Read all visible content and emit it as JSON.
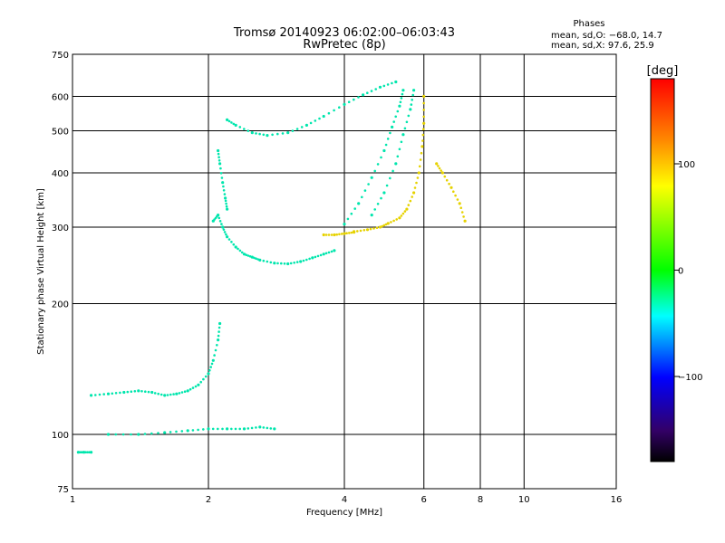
{
  "header": {
    "title_line1": "Tromsø 20140923 06:02:00–06:03:43",
    "title_line2": "RwPretec (8p)"
  },
  "stats": {
    "heading": "Phases",
    "line_o": "mean, sd,O: −68.0, 14.7",
    "line_x": "mean, sd,X:  97.6, 25.9"
  },
  "colorbar": {
    "label": "[deg]",
    "ticks": [
      100,
      0,
      -100
    ],
    "range": [
      -180,
      180
    ]
  },
  "chart_data": {
    "type": "scatter",
    "title": "Tromsø 20140923 06:02:00–06:03:43",
    "subtitle": "RwPretec (8p)",
    "xlabel": "Frequency [MHz]",
    "ylabel": "Stationary phase Virtual Height [km]",
    "x_scale": "log",
    "y_scale": "log",
    "xlim": [
      1,
      16
    ],
    "ylim": [
      75,
      750
    ],
    "x_ticks": [
      1,
      2,
      4,
      6,
      8,
      10,
      16
    ],
    "y_ticks": [
      75,
      100,
      200,
      300,
      400,
      500,
      600,
      750
    ],
    "x_gridlines": [
      2,
      4,
      6,
      8,
      10
    ],
    "y_gridlines": [
      100,
      200,
      300,
      400,
      500,
      600
    ],
    "series": [
      {
        "mode": "O",
        "phase_deg": -68,
        "segments": [
          {
            "points": [
              [
                1.03,
                91
              ],
              [
                1.06,
                91
              ],
              [
                1.1,
                91
              ]
            ]
          },
          {
            "points": [
              [
                1.1,
                123
              ],
              [
                1.2,
                124
              ],
              [
                1.3,
                125
              ],
              [
                1.4,
                126
              ],
              [
                1.5,
                125
              ],
              [
                1.6,
                123
              ],
              [
                1.7,
                124
              ],
              [
                1.8,
                126
              ],
              [
                1.9,
                130
              ],
              [
                2.0,
                138
              ],
              [
                2.05,
                148
              ],
              [
                2.1,
                165
              ],
              [
                2.12,
                180
              ]
            ]
          },
          {
            "points": [
              [
                1.2,
                100
              ],
              [
                1.4,
                100
              ],
              [
                1.6,
                101
              ],
              [
                1.8,
                102
              ],
              [
                2.0,
                103
              ],
              [
                2.2,
                103
              ],
              [
                2.4,
                103
              ],
              [
                2.6,
                104
              ],
              [
                2.8,
                103
              ]
            ]
          },
          {
            "points": [
              [
                2.05,
                310
              ],
              [
                2.1,
                320
              ],
              [
                2.15,
                300
              ],
              [
                2.2,
                285
              ],
              [
                2.3,
                270
              ],
              [
                2.4,
                260
              ],
              [
                2.5,
                256
              ],
              [
                2.6,
                252
              ],
              [
                2.8,
                248
              ],
              [
                3.0,
                247
              ],
              [
                3.2,
                250
              ],
              [
                3.4,
                255
              ],
              [
                3.6,
                260
              ],
              [
                3.8,
                265
              ]
            ]
          },
          {
            "points": [
              [
                2.1,
                450
              ],
              [
                2.12,
                420
              ],
              [
                2.15,
                380
              ],
              [
                2.18,
                350
              ],
              [
                2.2,
                330
              ]
            ]
          },
          {
            "points": [
              [
                2.2,
                530
              ],
              [
                2.3,
                515
              ],
              [
                2.5,
                495
              ],
              [
                2.7,
                488
              ],
              [
                3.0,
                495
              ],
              [
                3.3,
                515
              ],
              [
                3.6,
                540
              ],
              [
                4.0,
                575
              ],
              [
                4.4,
                605
              ],
              [
                4.8,
                630
              ],
              [
                5.2,
                648
              ]
            ]
          },
          {
            "points": [
              [
                4.0,
                305
              ],
              [
                4.3,
                340
              ],
              [
                4.6,
                390
              ],
              [
                4.9,
                450
              ],
              [
                5.1,
                510
              ],
              [
                5.3,
                570
              ],
              [
                5.4,
                620
              ]
            ]
          },
          {
            "points": [
              [
                4.6,
                320
              ],
              [
                4.9,
                360
              ],
              [
                5.2,
                420
              ],
              [
                5.4,
                490
              ],
              [
                5.6,
                560
              ],
              [
                5.7,
                620
              ]
            ]
          }
        ]
      },
      {
        "mode": "X",
        "phase_deg": 97.6,
        "segments": [
          {
            "points": [
              [
                3.6,
                288
              ],
              [
                3.8,
                288
              ],
              [
                4.0,
                290
              ],
              [
                4.2,
                292
              ]
            ]
          },
          {
            "points": [
              [
                4.2,
                293
              ],
              [
                4.5,
                296
              ],
              [
                4.8,
                300
              ],
              [
                5.0,
                306
              ],
              [
                5.3,
                315
              ],
              [
                5.5,
                330
              ],
              [
                5.7,
                360
              ],
              [
                5.85,
                400
              ],
              [
                5.95,
                460
              ],
              [
                6.0,
                520
              ],
              [
                6.0,
                600
              ]
            ]
          },
          {
            "points": [
              [
                6.4,
                420
              ],
              [
                6.6,
                400
              ],
              [
                6.9,
                370
              ],
              [
                7.2,
                340
              ],
              [
                7.4,
                310
              ]
            ]
          }
        ]
      }
    ],
    "colorbar": {
      "label": "[deg]",
      "range": [
        -180,
        180
      ],
      "ticks": [
        100,
        0,
        -100
      ]
    }
  }
}
